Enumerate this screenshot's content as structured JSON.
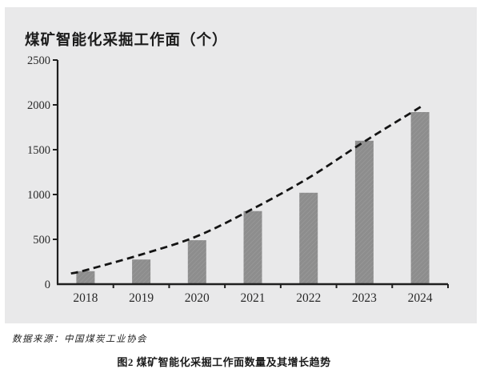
{
  "page": {
    "title": "煤矿智能化采掘工作面（个）",
    "source": "数据来源：中国煤炭工业协会",
    "caption": "图2 煤矿智能化采掘工作面数量及其增长趋势"
  },
  "chart_data": {
    "type": "bar",
    "title": "煤矿智能化采掘工作面（个）",
    "categories": [
      "2018",
      "2019",
      "2020",
      "2021",
      "2022",
      "2023",
      "2024"
    ],
    "values": [
      145,
      275,
      490,
      815,
      1020,
      1600,
      1920
    ],
    "trend_line": {
      "style": "dashed",
      "points": [
        {
          "x": 2017.74,
          "y": 120
        },
        {
          "x": 2018,
          "y": 155
        },
        {
          "x": 2019,
          "y": 330
        },
        {
          "x": 2020,
          "y": 535
        },
        {
          "x": 2021,
          "y": 840
        },
        {
          "x": 2022,
          "y": 1185
        },
        {
          "x": 2023,
          "y": 1590
        },
        {
          "x": 2024.03,
          "y": 1985
        }
      ]
    },
    "xlabel": "",
    "ylabel": "",
    "ylim": [
      0,
      2500
    ],
    "ytick_step": 500,
    "grid": false,
    "legend": "none",
    "colors": {
      "panel_bg": "#e9e9ea",
      "page_bg": "#ffffff",
      "bar": "#8d8d8d",
      "bar_hatch": "#9c9c9c",
      "trend": "#141414",
      "axis": "#1f1f1f",
      "tick_text": "#2a2a2a"
    }
  }
}
